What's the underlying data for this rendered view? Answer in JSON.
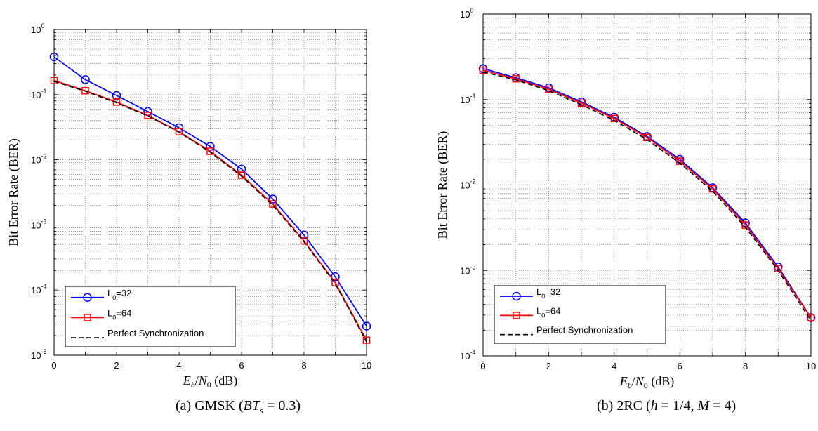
{
  "chart_data": [
    {
      "type": "line",
      "caption": "(a) GMSK (BT_s = 0.3)",
      "caption_parts": {
        "prefix": "(a) GMSK (",
        "var": "BT",
        "sub": "s",
        "suffix": " = 0.3)"
      },
      "xlabel": "E_b/N_0 (dB)",
      "ylabel": "Bit Error Rate (BER)",
      "xlim": [
        0,
        10
      ],
      "ylim": [
        1e-05,
        1
      ],
      "yscale": "log",
      "grid": true,
      "legend_position": "bottom-left",
      "x_ticks": [
        "0",
        "2",
        "4",
        "6",
        "8",
        "10"
      ],
      "y_ticks": [
        {
          "base": "10",
          "exp": "-5"
        },
        {
          "base": "10",
          "exp": "-4"
        },
        {
          "base": "10",
          "exp": "-3"
        },
        {
          "base": "10",
          "exp": "-2"
        },
        {
          "base": "10",
          "exp": "-1"
        },
        {
          "base": "10",
          "exp": "0"
        }
      ],
      "x": [
        0,
        1,
        2,
        3,
        4,
        5,
        6,
        7,
        8,
        9,
        10
      ],
      "series": [
        {
          "name": "L_0=32",
          "legend_base": "L",
          "legend_sub": "0",
          "legend_rest": "=32",
          "color": "#0000ff",
          "marker": "circle",
          "style": "solid",
          "values": [
            0.38,
            0.17,
            0.097,
            0.055,
            0.031,
            0.016,
            0.0072,
            0.0025,
            0.0007,
            0.00016,
            2.8e-05
          ]
        },
        {
          "name": "L_0=64",
          "legend_base": "L",
          "legend_sub": "0",
          "legend_rest": "=64",
          "color": "#ff0000",
          "marker": "square",
          "style": "solid",
          "values": [
            0.165,
            0.115,
            0.077,
            0.048,
            0.027,
            0.0135,
            0.0058,
            0.0021,
            0.00057,
            0.00013,
            1.7e-05
          ]
        },
        {
          "name": "Perfect Synchronization",
          "legend_base": "Perfect Synchronization",
          "legend_sub": "",
          "legend_rest": "",
          "color": "#000000",
          "marker": "none",
          "style": "dashed",
          "values": [
            0.16,
            0.113,
            0.075,
            0.047,
            0.0265,
            0.013,
            0.0056,
            0.002,
            0.00055,
            0.000125,
            1.6e-05
          ]
        }
      ]
    },
    {
      "type": "line",
      "caption": "(b) 2RC (h = 1/4, M = 4)",
      "caption_parts": {
        "prefix": "(b) 2RC (",
        "var": "h",
        "mid": " = 1/4, ",
        "var2": "M",
        "suffix": " = 4)"
      },
      "xlabel": "E_b/N_0 (dB)",
      "ylabel": "Bit Error Rate (BER)",
      "xlim": [
        0,
        10
      ],
      "ylim": [
        0.0001,
        1
      ],
      "yscale": "log",
      "grid": true,
      "legend_position": "bottom-left",
      "x_ticks": [
        "0",
        "2",
        "4",
        "6",
        "8",
        "10"
      ],
      "y_ticks": [
        {
          "base": "10",
          "exp": "-4"
        },
        {
          "base": "10",
          "exp": "-3"
        },
        {
          "base": "10",
          "exp": "-2"
        },
        {
          "base": "10",
          "exp": "-1"
        },
        {
          "base": "10",
          "exp": "0"
        }
      ],
      "x": [
        0,
        1,
        2,
        3,
        4,
        5,
        6,
        7,
        8,
        9,
        10
      ],
      "series": [
        {
          "name": "L_0=32",
          "legend_base": "L",
          "legend_sub": "0",
          "legend_rest": "=32",
          "color": "#0000ff",
          "marker": "circle",
          "style": "solid",
          "values": [
            0.23,
            0.18,
            0.137,
            0.094,
            0.062,
            0.037,
            0.02,
            0.0093,
            0.0036,
            0.0011,
            0.00028
          ]
        },
        {
          "name": "L_0=64",
          "legend_base": "L",
          "legend_sub": "0",
          "legend_rest": "=64",
          "color": "#ff0000",
          "marker": "square",
          "style": "solid",
          "values": [
            0.22,
            0.175,
            0.132,
            0.091,
            0.06,
            0.036,
            0.019,
            0.009,
            0.0034,
            0.00105,
            0.00028
          ]
        },
        {
          "name": "Perfect Synchronization",
          "legend_base": "Perfect Synchronization",
          "legend_sub": "",
          "legend_rest": "",
          "color": "#000000",
          "marker": "none",
          "style": "dashed",
          "values": [
            0.21,
            0.17,
            0.127,
            0.087,
            0.057,
            0.034,
            0.018,
            0.0085,
            0.0032,
            0.001,
            0.00026
          ]
        }
      ]
    }
  ]
}
